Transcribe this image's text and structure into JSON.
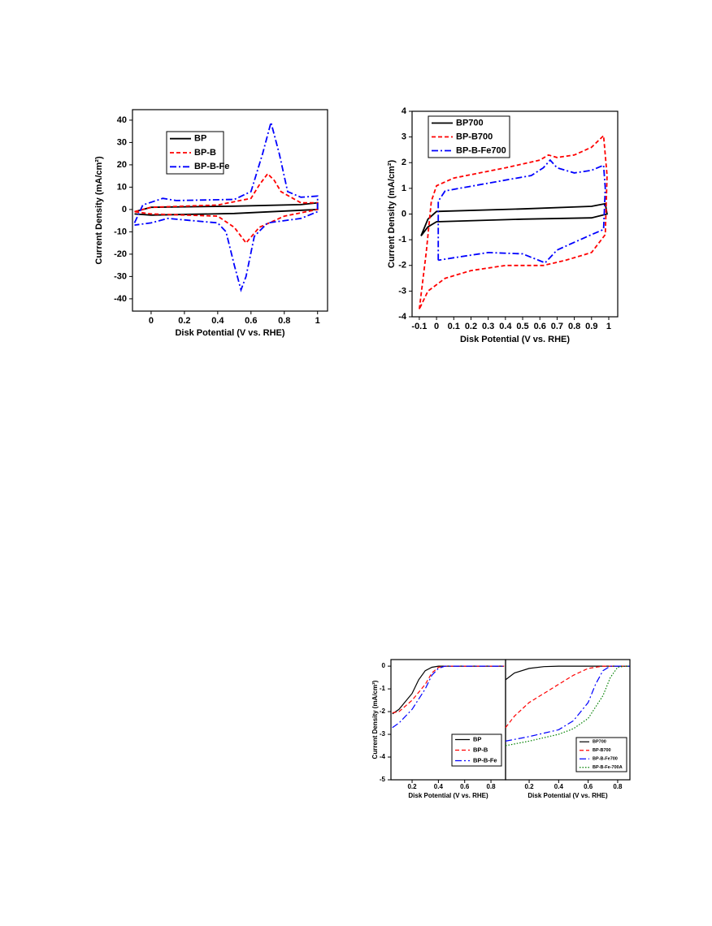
{
  "chart_data": [
    {
      "type": "line",
      "xlabel": "Disk Potential (V vs. RHE)",
      "ylabel": "Current Density (mA/cm²)",
      "xlim": [
        -0.112,
        1.06
      ],
      "ylim": [
        -45.5,
        44.7
      ],
      "xticks": [
        0,
        0.2,
        0.4,
        0.6,
        0.8,
        1
      ],
      "yticks": [
        -40,
        -30,
        -20,
        -10,
        0,
        10,
        20,
        30,
        40
      ],
      "legend": "upper left",
      "series": [
        {
          "name": "BP",
          "color": "#000000",
          "dash": "solid",
          "x": [
            -0.1,
            0,
            0.5,
            0.9,
            1.0,
            1.0,
            0.5,
            0,
            -0.1
          ],
          "values": [
            -1,
            1,
            1.5,
            2.2,
            3,
            0,
            -1.8,
            -2.5,
            -2
          ]
        },
        {
          "name": "BP-B",
          "color": "#ff0000",
          "dash": "dashed",
          "x": [
            -0.1,
            0,
            0.4,
            0.6,
            0.65,
            0.7,
            0.74,
            0.78,
            0.9,
            1.0,
            1.0,
            0.8,
            0.65,
            0.57,
            0.5,
            0.4,
            0,
            -0.1
          ],
          "values": [
            -1,
            1,
            2,
            5,
            11,
            16,
            13,
            8,
            3,
            3,
            0,
            -3,
            -8,
            -15,
            -8,
            -3,
            -2,
            -1
          ]
        },
        {
          "name": "BP-B-Fe",
          "color": "#0000ff",
          "dash": "dashdot",
          "x": [
            -0.1,
            -0.05,
            0.07,
            0.15,
            0.5,
            0.6,
            0.67,
            0.72,
            0.77,
            0.82,
            0.9,
            1.0,
            1.0,
            0.9,
            0.7,
            0.62,
            0.57,
            0.54,
            0.5,
            0.45,
            0.4,
            0.1,
            0,
            -0.1
          ],
          "values": [
            -6,
            2,
            5,
            4,
            4.5,
            8,
            25,
            39,
            25,
            8,
            5.5,
            6,
            -1,
            -4,
            -6,
            -12,
            -30,
            -36,
            -25,
            -10,
            -6,
            -4,
            -6,
            -7
          ]
        }
      ]
    },
    {
      "type": "line",
      "xlabel": "Disk Potential (V vs. RHE)",
      "ylabel": "Current Density (mA/cm²)",
      "xlim": [
        -0.142,
        1.052
      ],
      "ylim": [
        -4,
        4
      ],
      "xticks": [
        -0.1,
        0,
        0.1,
        0.2,
        0.3,
        0.4,
        0.5,
        0.6,
        0.7,
        0.8,
        0.9,
        1
      ],
      "yticks": [
        -4,
        -3,
        -2,
        -1,
        0,
        1,
        2,
        3,
        4
      ],
      "legend": "upper left",
      "series": [
        {
          "name": "BP700",
          "color": "#000000",
          "dash": "solid",
          "x": [
            -0.09,
            -0.05,
            0,
            0.5,
            0.9,
            0.98,
            0.99,
            0.9,
            0.5,
            0,
            -0.05,
            -0.09
          ],
          "values": [
            -0.85,
            -0.2,
            0.1,
            0.2,
            0.3,
            0.4,
            0,
            -0.15,
            -0.2,
            -0.3,
            -0.5,
            -0.85
          ]
        },
        {
          "name": "BP-B700",
          "color": "#ff0000",
          "dash": "dashed",
          "x": [
            -0.1,
            -0.06,
            -0.03,
            0,
            0.1,
            0.4,
            0.6,
            0.65,
            0.7,
            0.8,
            0.9,
            0.97,
            0.99,
            0.98,
            0.9,
            0.75,
            0.62,
            0.4,
            0.2,
            0.05,
            -0.05,
            -0.1
          ],
          "values": [
            -3.7,
            -1.5,
            0.5,
            1.1,
            1.4,
            1.8,
            2.1,
            2.3,
            2.2,
            2.3,
            2.6,
            3.05,
            1.5,
            -0.8,
            -1.5,
            -1.8,
            -2.0,
            -2.0,
            -2.2,
            -2.5,
            -3.0,
            -3.7
          ]
        },
        {
          "name": "BP-B-Fe700",
          "color": "#0000ff",
          "dash": "dashdot",
          "x": [
            0.01,
            0.01,
            0.05,
            0.3,
            0.55,
            0.62,
            0.66,
            0.7,
            0.8,
            0.9,
            0.97,
            0.98,
            0.97,
            0.9,
            0.7,
            0.63,
            0.5,
            0.3,
            0.1,
            0.01
          ],
          "values": [
            -1.8,
            0.5,
            0.9,
            1.2,
            1.5,
            1.8,
            2.1,
            1.8,
            1.6,
            1.7,
            1.9,
            1.0,
            -0.6,
            -0.8,
            -1.4,
            -1.9,
            -1.55,
            -1.5,
            -1.7,
            -1.8
          ]
        }
      ]
    },
    {
      "type": "line",
      "xlabel": "Disk Potential (V vs. RHE)",
      "ylabel": "Current Density (mA/cm²)",
      "xlim": [
        0.039,
        0.911
      ],
      "ylim": [
        -5,
        0.29
      ],
      "xticks": [
        0.2,
        0.4,
        0.6,
        0.8
      ],
      "yticks": [
        -5,
        -4,
        -3,
        -2,
        -1,
        0
      ],
      "legend": "lower right",
      "series": [
        {
          "name": "BP",
          "color": "#000000",
          "dash": "solid",
          "x": [
            0.05,
            0.1,
            0.2,
            0.25,
            0.3,
            0.35,
            0.4,
            0.9
          ],
          "values": [
            -2.1,
            -1.9,
            -1.2,
            -0.6,
            -0.2,
            -0.05,
            0,
            0
          ]
        },
        {
          "name": "BP-B",
          "color": "#ff0000",
          "dash": "dashed",
          "x": [
            0.05,
            0.1,
            0.2,
            0.3,
            0.35,
            0.4,
            0.45,
            0.9
          ],
          "values": [
            -2.05,
            -2.0,
            -1.5,
            -0.8,
            -0.3,
            -0.05,
            0,
            0
          ]
        },
        {
          "name": "BP-B-Fe",
          "color": "#0000ff",
          "dash": "dashdot",
          "x": [
            0.05,
            0.1,
            0.2,
            0.3,
            0.35,
            0.4,
            0.45,
            0.9
          ],
          "values": [
            -2.7,
            -2.5,
            -1.9,
            -1.0,
            -0.4,
            -0.1,
            0,
            0
          ]
        }
      ]
    },
    {
      "type": "line",
      "xlabel": "Disk Potential (V vs. RHE)",
      "xlim": [
        0.04,
        0.883
      ],
      "ylim": [
        -5,
        0.29
      ],
      "xticks": [
        0.2,
        0.4,
        0.6,
        0.8
      ],
      "legend": "lower right",
      "series": [
        {
          "name": "BP700",
          "color": "#000000",
          "dash": "solid",
          "x": [
            0.04,
            0.1,
            0.2,
            0.3,
            0.4,
            0.88
          ],
          "values": [
            -0.6,
            -0.3,
            -0.1,
            -0.02,
            0,
            0
          ]
        },
        {
          "name": "BP-B700",
          "color": "#ff0000",
          "dash": "dashed",
          "x": [
            0.04,
            0.1,
            0.2,
            0.3,
            0.4,
            0.5,
            0.6,
            0.7,
            0.88
          ],
          "values": [
            -2.7,
            -2.2,
            -1.6,
            -1.2,
            -0.8,
            -0.4,
            -0.1,
            0,
            0
          ]
        },
        {
          "name": "BP-B-Fe700",
          "color": "#0000ff",
          "dash": "dashdot",
          "x": [
            0.04,
            0.2,
            0.4,
            0.5,
            0.6,
            0.65,
            0.7,
            0.75,
            0.88
          ],
          "values": [
            -3.3,
            -3.1,
            -2.8,
            -2.4,
            -1.6,
            -0.8,
            -0.2,
            0,
            0
          ]
        },
        {
          "name": "BP-B-Fe-700A",
          "color": "#008000",
          "dash": "dotted",
          "x": [
            0.04,
            0.2,
            0.4,
            0.5,
            0.6,
            0.7,
            0.75,
            0.8,
            0.85,
            0.88
          ],
          "values": [
            -3.5,
            -3.3,
            -3.0,
            -2.75,
            -2.3,
            -1.3,
            -0.5,
            -0.05,
            0,
            0
          ]
        }
      ]
    }
  ]
}
